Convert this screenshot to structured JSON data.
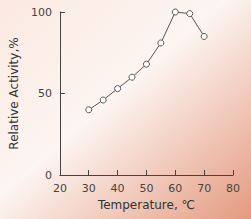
{
  "chart_data": {
    "type": "line",
    "x": [
      30,
      35,
      40,
      45,
      50,
      55,
      60,
      65,
      70
    ],
    "values": [
      40,
      46,
      53,
      60,
      68,
      81,
      100,
      99,
      85
    ],
    "xlabel": "Temperature, ℃",
    "ylabel": "Relative Activity,%",
    "xlim": [
      20,
      80
    ],
    "xticks": [
      20,
      30,
      40,
      50,
      60,
      70,
      80
    ],
    "ylim": [
      0,
      100
    ],
    "yticks": [
      0,
      50,
      100
    ],
    "color": "#555555",
    "marker": "circle",
    "grid": false
  }
}
